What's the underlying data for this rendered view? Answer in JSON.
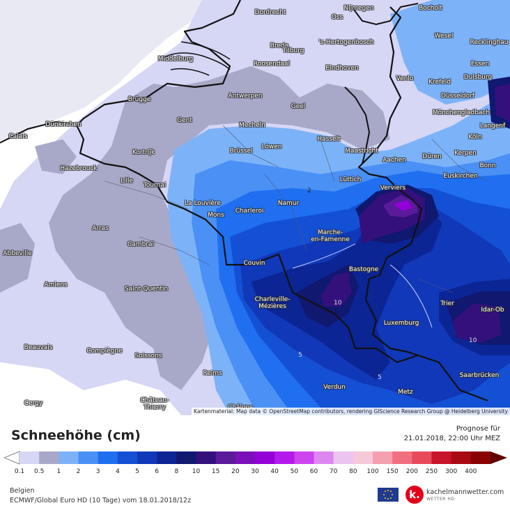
{
  "map": {
    "attribution": "Kartenmaterial: Map data © OpenStreetMap contributors, rendering GIScience Research Group @ Heidelberg University",
    "contour_labels": [
      "2",
      "10",
      "5",
      "5",
      "10"
    ],
    "cities": [
      {
        "name": "Dordrecht"
      },
      {
        "name": "Oss"
      },
      {
        "name": "Nijmegen"
      },
      {
        "name": "Bocholt"
      },
      {
        "name": "Breda"
      },
      {
        "name": "Tilburg"
      },
      {
        "name": "'s-Hertogenbosch"
      },
      {
        "name": "Wesel"
      },
      {
        "name": "Middelburg"
      },
      {
        "name": "Roosendaal"
      },
      {
        "name": "Recklinghau"
      },
      {
        "name": "Eindhoven"
      },
      {
        "name": "Essen"
      },
      {
        "name": "Venlo"
      },
      {
        "name": "Krefeld"
      },
      {
        "name": "Duisburg"
      },
      {
        "name": "Antwerpen"
      },
      {
        "name": "Brügge"
      },
      {
        "name": "Düsseldorf"
      },
      {
        "name": "Geel"
      },
      {
        "name": "Gent"
      },
      {
        "name": "Mönchengladbach"
      },
      {
        "name": "Dünkirchen"
      },
      {
        "name": "Mecheln"
      },
      {
        "name": "Langenf"
      },
      {
        "name": "Calais"
      },
      {
        "name": "Köln"
      },
      {
        "name": "Hasselt"
      },
      {
        "name": "Kortrijk"
      },
      {
        "name": "Brüssel"
      },
      {
        "name": "Löwen"
      },
      {
        "name": "Maastricht"
      },
      {
        "name": "Düren"
      },
      {
        "name": "Kerpen"
      },
      {
        "name": "Aachen"
      },
      {
        "name": "Hazebrouck"
      },
      {
        "name": "Bonn"
      },
      {
        "name": "Euskirchen"
      },
      {
        "name": "Tournai"
      },
      {
        "name": "Lille"
      },
      {
        "name": "Lüttich"
      },
      {
        "name": "Verviers"
      },
      {
        "name": "La Louvière"
      },
      {
        "name": "Namur"
      },
      {
        "name": "Mons"
      },
      {
        "name": "Charleroi"
      },
      {
        "name": "Arras"
      },
      {
        "name": "Marche-\nen-Famenne"
      },
      {
        "name": "Cambrai"
      },
      {
        "name": "Abbeville"
      },
      {
        "name": "Couvin"
      },
      {
        "name": "Bastogne"
      },
      {
        "name": "Amiens"
      },
      {
        "name": "Saint-Quentin"
      },
      {
        "name": "Charleville-\nMézières"
      },
      {
        "name": "Trier"
      },
      {
        "name": "Idar-Ob"
      },
      {
        "name": "Luxemburg"
      },
      {
        "name": "Beauvais"
      },
      {
        "name": "Compiègne"
      },
      {
        "name": "Soissons"
      },
      {
        "name": "Saarbrücken"
      },
      {
        "name": "Reims"
      },
      {
        "name": "Verdun"
      },
      {
        "name": "Metz"
      },
      {
        "name": "Château-\nThierry"
      },
      {
        "name": "Cergy"
      },
      {
        "name": "Châlons"
      }
    ]
  },
  "legend": {
    "title": "Schneehöhe (cm)",
    "forecast_label": "Prognose für",
    "forecast_date": "21.01.2018, 22:00 Uhr MEZ",
    "region": "Belgien",
    "model": "ECMWF/Global Euro HD (10 Tage) vom 18.01.2018/12z",
    "ticks": [
      "0.1",
      "0.5",
      "1",
      "2",
      "3",
      "4",
      "5",
      "6",
      "8",
      "10",
      "15",
      "20",
      "30",
      "40",
      "50",
      "60",
      "70",
      "80",
      "100",
      "150",
      "200",
      "250",
      "300",
      "400"
    ],
    "colors": [
      "#d6d6f5",
      "#a8a8c8",
      "#7cb3f8",
      "#4a90f5",
      "#1f6ff0",
      "#1450d4",
      "#1038b8",
      "#0c2594",
      "#101870",
      "#33107c",
      "#5a1a99",
      "#7a10b8",
      "#9400d8",
      "#b31aeb",
      "#cc44f0",
      "#dd88f0",
      "#ecc4f0",
      "#f6c8d8",
      "#f5a0b0",
      "#f07080",
      "#e84a5c",
      "#c8142a",
      "#a80a14",
      "#880000",
      "#600000"
    ]
  },
  "branding": {
    "logo_letter": "k.",
    "name": "kachelmannwetter.com",
    "sub": "WETTER HD"
  }
}
